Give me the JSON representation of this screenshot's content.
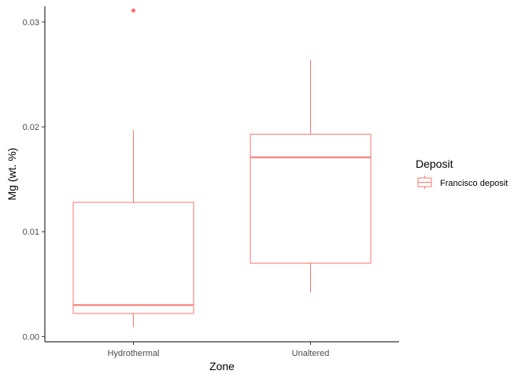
{
  "chart_data": {
    "type": "boxplot",
    "xlabel": "Zone",
    "ylabel": "Mg (wt. %)",
    "categories": [
      "Hydrothermal",
      "Unaltered"
    ],
    "yticks": [
      "0.00",
      "0.01",
      "0.02",
      "0.03"
    ],
    "ylim": [
      -0.0005,
      0.0315
    ],
    "grid": false,
    "legend": {
      "title": "Deposit",
      "entries": [
        "Francisco deposit"
      ],
      "placement": "right"
    },
    "series": [
      {
        "name": "Francisco deposit",
        "color": "#F8766D",
        "boxes": [
          {
            "category": "Hydrothermal",
            "min": 0.0009,
            "q1": 0.0022,
            "median": 0.003,
            "q3": 0.0128,
            "max": 0.0197,
            "outliers": [
              0.0311
            ]
          },
          {
            "category": "Unaltered",
            "min": 0.0042,
            "q1": 0.007,
            "median": 0.0171,
            "q3": 0.0193,
            "max": 0.0264,
            "outliers": []
          }
        ]
      }
    ]
  }
}
